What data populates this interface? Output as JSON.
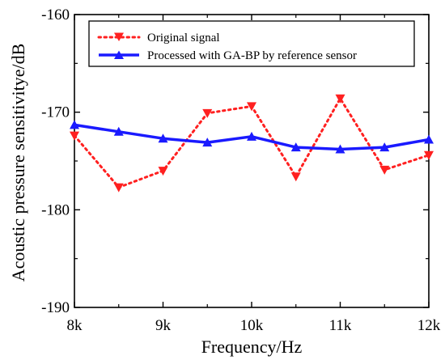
{
  "chart_data": {
    "type": "line",
    "title": "",
    "xlabel": "Frequency/Hz",
    "ylabel": "Acoustic pressure sensitivitye/dB",
    "xlim": [
      8000,
      12000
    ],
    "ylim": [
      -190,
      -160
    ],
    "x_ticks": [
      {
        "value": 8000,
        "label": "8k"
      },
      {
        "value": 9000,
        "label": "9k"
      },
      {
        "value": 10000,
        "label": "10k"
      },
      {
        "value": 11000,
        "label": "11k"
      },
      {
        "value": 12000,
        "label": "12k"
      }
    ],
    "y_ticks": [
      {
        "value": -160,
        "label": "-160"
      },
      {
        "value": -170,
        "label": "-170"
      },
      {
        "value": -180,
        "label": "-180"
      },
      {
        "value": -190,
        "label": "-190"
      }
    ],
    "x": [
      8000,
      8500,
      9000,
      9500,
      10000,
      10500,
      11000,
      11500,
      12000
    ],
    "series": [
      {
        "name": "Original signal",
        "values": [
          -172.4,
          -177.7,
          -176.0,
          -170.1,
          -169.4,
          -176.6,
          -168.6,
          -175.9,
          -174.4
        ],
        "color": "#ff2020",
        "style": "dotted",
        "marker": "triangle-down"
      },
      {
        "name": "Processed with GA-BP by reference sensor",
        "values": [
          -171.3,
          -172.0,
          -172.7,
          -173.1,
          -172.5,
          -173.6,
          -173.8,
          -173.6,
          -172.8
        ],
        "color": "#1a1aff",
        "style": "solid",
        "marker": "triangle-up"
      }
    ],
    "legend_position": "top",
    "grid": false
  }
}
